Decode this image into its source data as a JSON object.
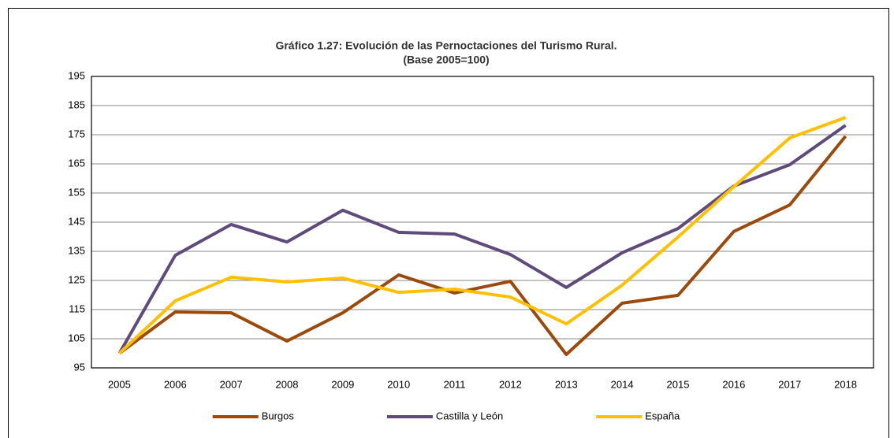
{
  "chart_data": {
    "type": "line",
    "title": "Gráfico 1.27: Evolución de las Pernoctaciones del Turismo Rural.",
    "subtitle": "(Base 2005=100)",
    "categories": [
      "2005",
      "2006",
      "2007",
      "2008",
      "2009",
      "2010",
      "2011",
      "2012",
      "2013",
      "2014",
      "2015",
      "2016",
      "2017",
      "2018"
    ],
    "series": [
      {
        "name": "Burgos",
        "color": "#9b4a0c",
        "values": [
          100,
          114.2,
          113.9,
          104.2,
          113.9,
          126.9,
          120.7,
          124.7,
          99.6,
          117.2,
          119.9,
          141.8,
          150.9,
          174.5
        ]
      },
      {
        "name": "Castilla y León",
        "color": "#5f4a7c",
        "values": [
          100,
          133.6,
          144.2,
          138.2,
          149.1,
          141.5,
          140.9,
          133.9,
          122.6,
          134.5,
          142.8,
          157.4,
          164.7,
          178.2
        ]
      },
      {
        "name": "España",
        "color": "#ffc000",
        "values": [
          100,
          118,
          126.1,
          124.5,
          125.8,
          120.9,
          122,
          119.3,
          110.1,
          123.4,
          139.9,
          157.2,
          173.9,
          180.9
        ]
      }
    ],
    "ylim": [
      95,
      195
    ],
    "yticks": [
      95,
      105,
      115,
      125,
      135,
      145,
      155,
      165,
      175,
      185,
      195
    ],
    "grid": true,
    "legend": "bottom"
  }
}
